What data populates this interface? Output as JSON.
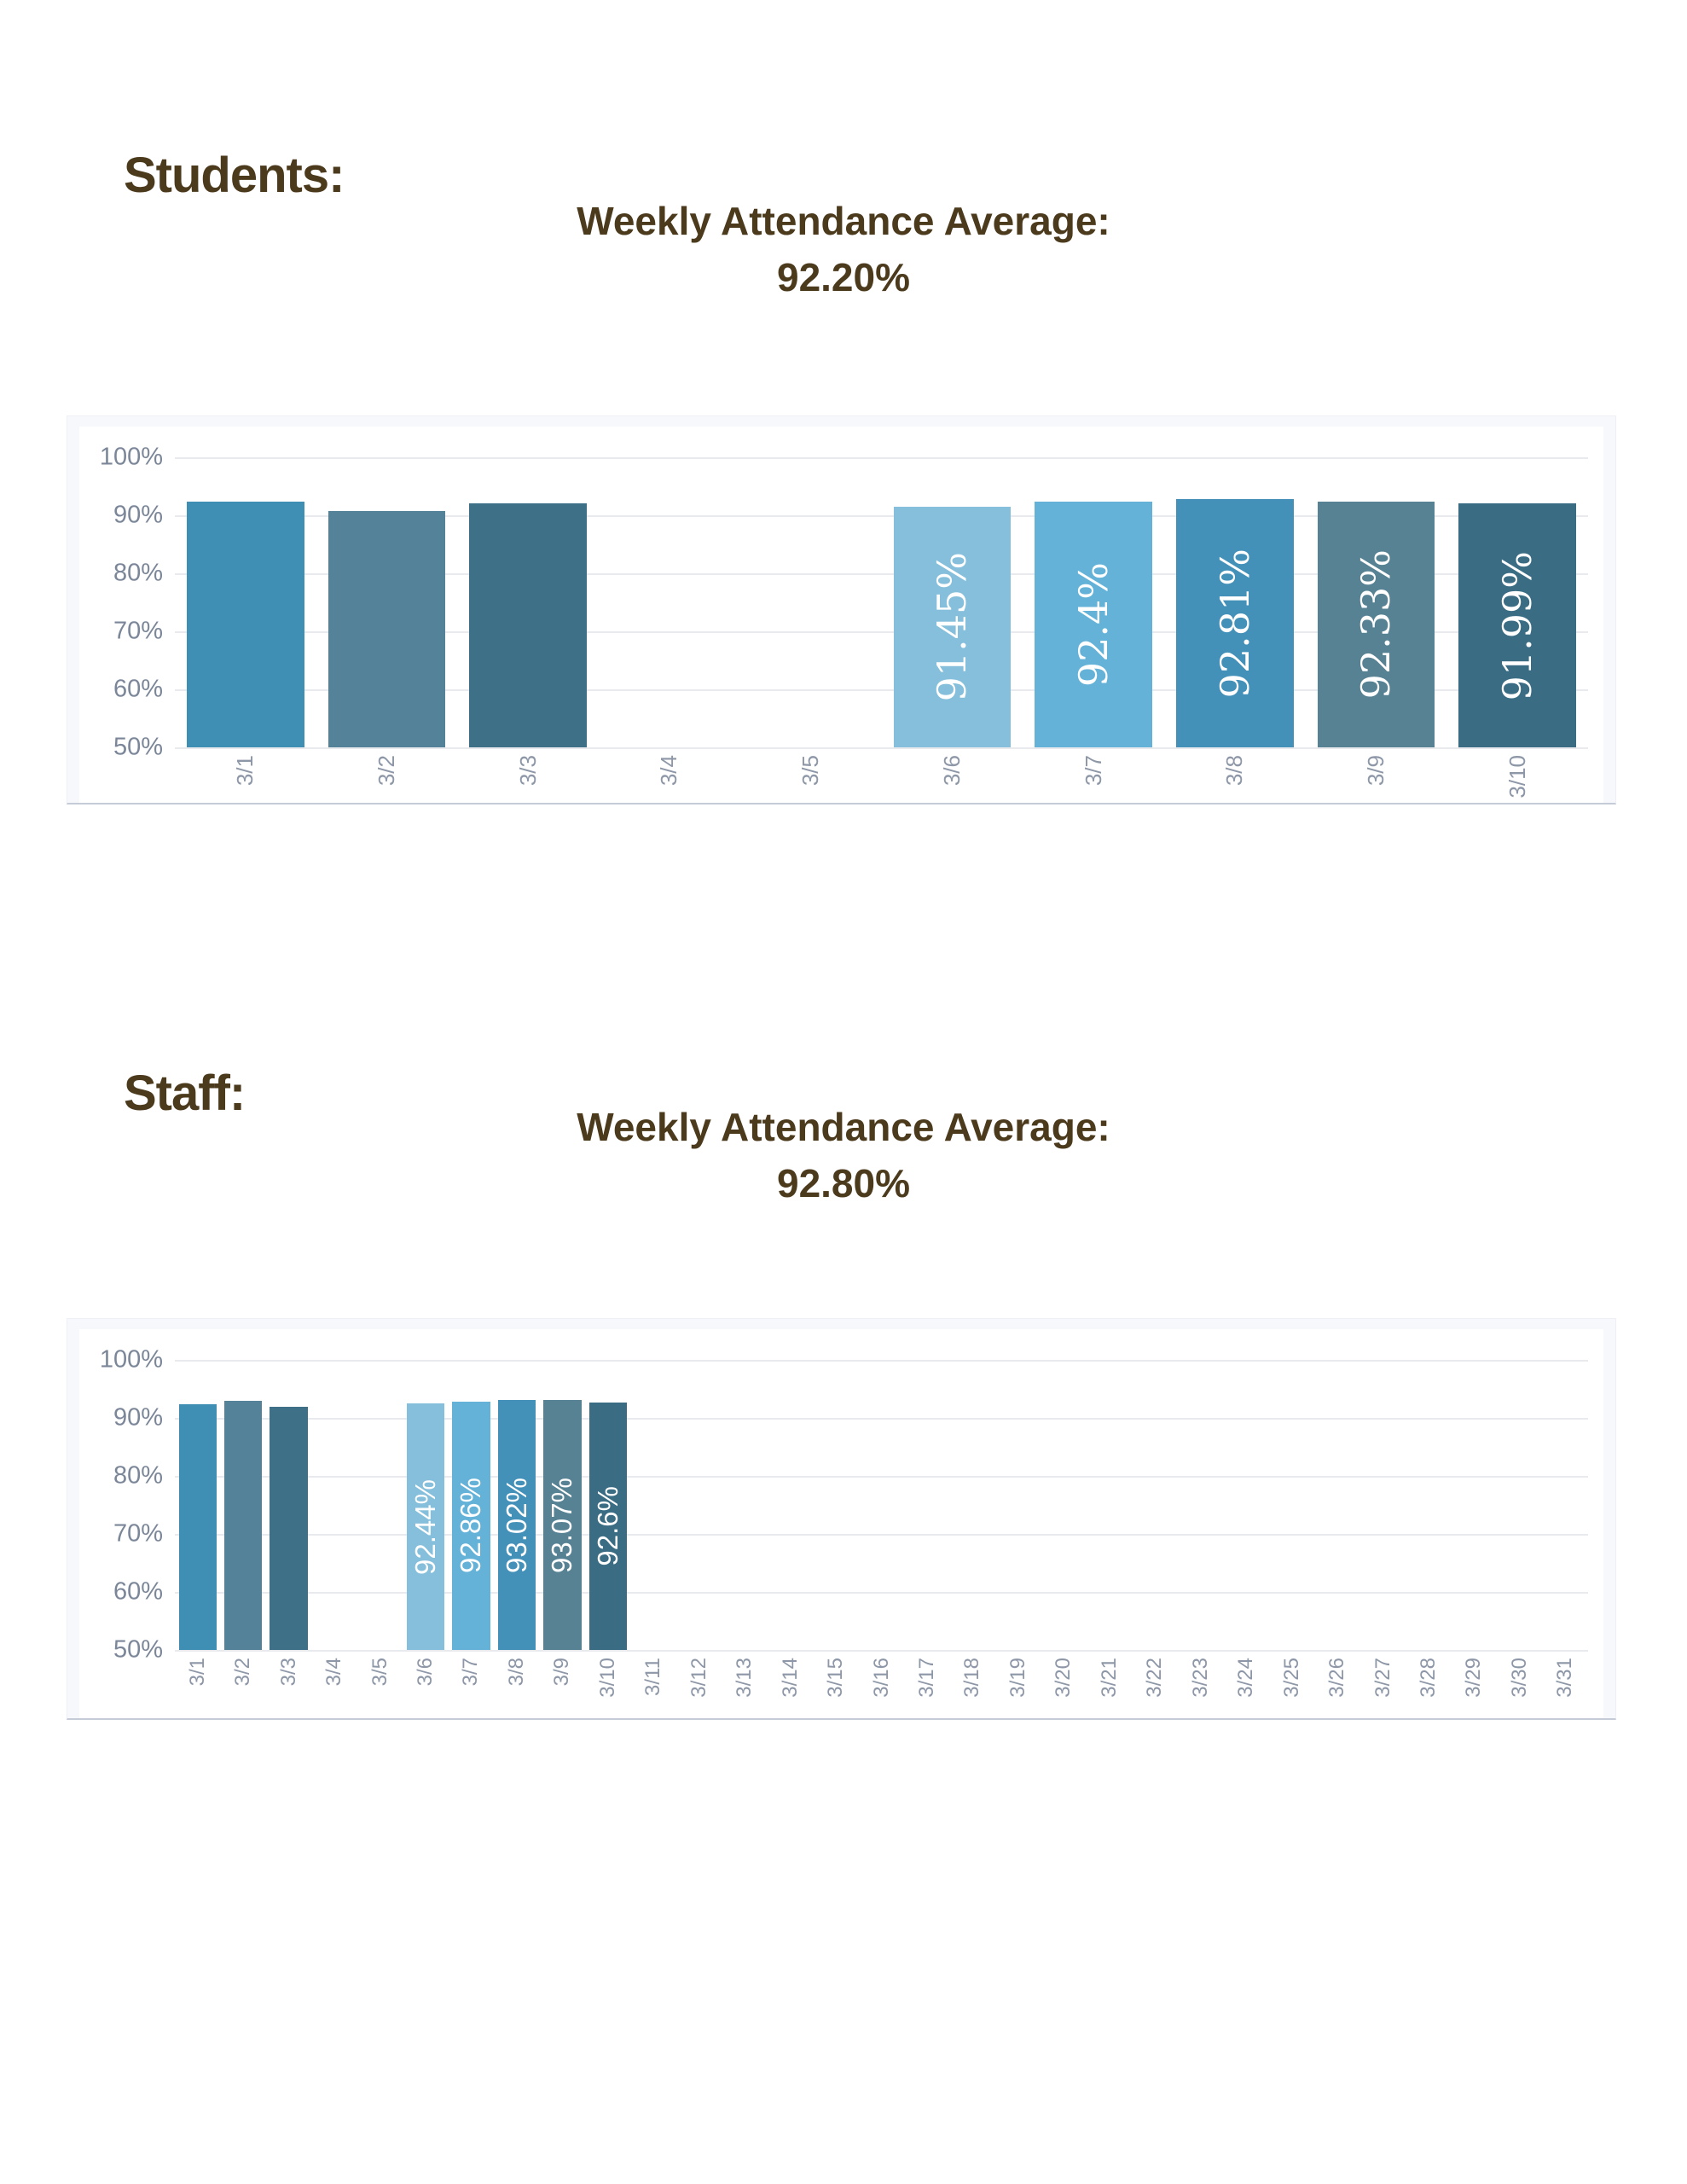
{
  "colors": {
    "heading_text": "#4C3A1D",
    "axis_text": "#7B8799",
    "tick_text": "#8D97A7",
    "bar_label_text": "#FFFFFF",
    "grid_line": "#E9EAEE",
    "panel_frame": "#F6F8FC",
    "panel_bottom_border": "#C5CBD7"
  },
  "students_section": {
    "heading": "Students:",
    "title_line1": "Weekly Attendance Average:",
    "title_line2": "92.20%"
  },
  "staff_section": {
    "heading": "Staff:",
    "title_line1": "Weekly Attendance Average:",
    "title_line2": "92.80%"
  },
  "chart_data": [
    {
      "type": "bar",
      "section": "Students",
      "title": "Weekly Attendance Average: 92.20%",
      "weekly_average": "92.20%",
      "xlabel": "",
      "ylabel": "",
      "ylim": [
        50,
        100
      ],
      "grid": true,
      "legend": "none",
      "y_ticks": [
        "100%",
        "90%",
        "80%",
        "70%",
        "60%",
        "50%"
      ],
      "categories": [
        "3/1",
        "3/2",
        "3/3",
        "3/4",
        "3/5",
        "3/6",
        "3/7",
        "3/8",
        "3/9",
        "3/10"
      ],
      "values": [
        92.3,
        90.7,
        92.0,
        null,
        null,
        91.45,
        92.4,
        92.81,
        92.33,
        91.99
      ],
      "bar_labels": [
        "",
        "",
        "",
        "",
        "",
        "91.45%",
        "92.4%",
        "92.81%",
        "92.33%",
        "91.99%"
      ],
      "bar_colors": [
        "#3E8FB3",
        "#548298",
        "#3E7187",
        null,
        null,
        "#85BFDB",
        "#64B2D8",
        "#4390B8",
        "#578294",
        "#3A6C84"
      ]
    },
    {
      "type": "bar",
      "section": "Staff",
      "title": "Weekly Attendance Average: 92.80%",
      "weekly_average": "92.80%",
      "xlabel": "",
      "ylabel": "",
      "ylim": [
        50,
        100
      ],
      "grid": true,
      "legend": "none",
      "y_ticks": [
        "100%",
        "90%",
        "80%",
        "70%",
        "60%",
        "50%"
      ],
      "categories": [
        "3/1",
        "3/2",
        "3/3",
        "3/4",
        "3/5",
        "3/6",
        "3/7",
        "3/8",
        "3/9",
        "3/10",
        "3/11",
        "3/12",
        "3/13",
        "3/14",
        "3/15",
        "3/16",
        "3/17",
        "3/18",
        "3/19",
        "3/20",
        "3/21",
        "3/22",
        "3/23",
        "3/24",
        "3/25",
        "3/26",
        "3/27",
        "3/28",
        "3/29",
        "3/30",
        "3/31"
      ],
      "values": [
        92.4,
        93.0,
        91.9,
        null,
        null,
        92.44,
        92.86,
        93.02,
        93.07,
        92.6,
        null,
        null,
        null,
        null,
        null,
        null,
        null,
        null,
        null,
        null,
        null,
        null,
        null,
        null,
        null,
        null,
        null,
        null,
        null,
        null,
        null
      ],
      "bar_labels": [
        "",
        "",
        "",
        "",
        "",
        "92.44%",
        "92.86%",
        "93.02%",
        "93.07%",
        "92.6%",
        "",
        "",
        "",
        "",
        "",
        "",
        "",
        "",
        "",
        "",
        "",
        "",
        "",
        "",
        "",
        "",
        "",
        "",
        "",
        "",
        ""
      ],
      "bar_colors": [
        "#3E8FB3",
        "#548298",
        "#3E7187",
        null,
        null,
        "#85BFDB",
        "#64B2D8",
        "#4390B8",
        "#578294",
        "#3A6C84",
        null,
        null,
        null,
        null,
        null,
        null,
        null,
        null,
        null,
        null,
        null,
        null,
        null,
        null,
        null,
        null,
        null,
        null,
        null,
        null,
        null
      ]
    }
  ]
}
